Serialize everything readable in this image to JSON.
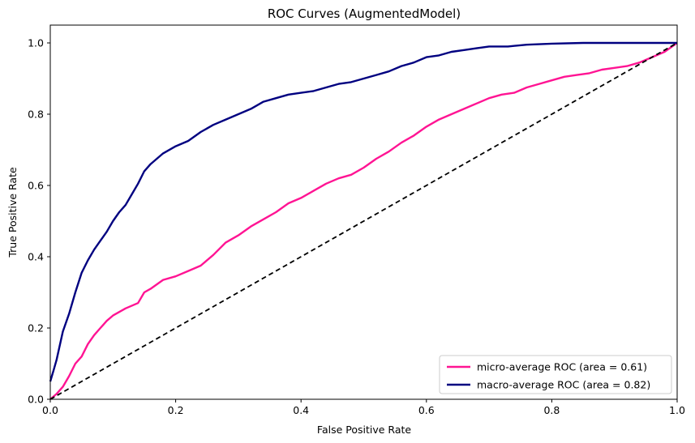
{
  "chart_data": {
    "type": "line",
    "title": "ROC Curves (AugmentedModel)",
    "xlabel": "False Positive Rate",
    "ylabel": "True Positive Rate",
    "xlim": [
      0.0,
      1.0
    ],
    "ylim": [
      0.0,
      1.05
    ],
    "xticks": [
      "0.0",
      "0.2",
      "0.4",
      "0.6",
      "0.8",
      "1.0"
    ],
    "yticks": [
      "0.0",
      "0.2",
      "0.4",
      "0.6",
      "0.8",
      "1.0"
    ],
    "grid": false,
    "legend_position": "lower right",
    "series": [
      {
        "name": "micro-average ROC (area = 0.61)",
        "color": "#ff1493",
        "x": [
          0.0,
          0.01,
          0.02,
          0.03,
          0.04,
          0.05,
          0.06,
          0.07,
          0.08,
          0.09,
          0.1,
          0.12,
          0.14,
          0.15,
          0.16,
          0.18,
          0.2,
          0.22,
          0.24,
          0.26,
          0.28,
          0.3,
          0.32,
          0.34,
          0.36,
          0.38,
          0.4,
          0.42,
          0.44,
          0.46,
          0.48,
          0.5,
          0.52,
          0.54,
          0.56,
          0.58,
          0.6,
          0.62,
          0.64,
          0.66,
          0.68,
          0.7,
          0.72,
          0.74,
          0.76,
          0.78,
          0.8,
          0.82,
          0.84,
          0.86,
          0.88,
          0.9,
          0.92,
          0.94,
          0.96,
          0.98,
          1.0
        ],
        "y": [
          0.0,
          0.015,
          0.035,
          0.065,
          0.1,
          0.12,
          0.155,
          0.18,
          0.2,
          0.22,
          0.235,
          0.255,
          0.27,
          0.3,
          0.31,
          0.335,
          0.345,
          0.36,
          0.375,
          0.405,
          0.44,
          0.46,
          0.485,
          0.505,
          0.525,
          0.55,
          0.565,
          0.585,
          0.605,
          0.62,
          0.63,
          0.65,
          0.675,
          0.695,
          0.72,
          0.74,
          0.765,
          0.785,
          0.8,
          0.815,
          0.83,
          0.845,
          0.855,
          0.86,
          0.875,
          0.885,
          0.895,
          0.905,
          0.91,
          0.915,
          0.925,
          0.93,
          0.935,
          0.945,
          0.96,
          0.975,
          1.0
        ]
      },
      {
        "name": "macro-average ROC (area = 0.82)",
        "color": "#000080",
        "x": [
          0.0,
          0.005,
          0.01,
          0.015,
          0.02,
          0.03,
          0.04,
          0.05,
          0.06,
          0.07,
          0.08,
          0.09,
          0.1,
          0.11,
          0.12,
          0.13,
          0.14,
          0.15,
          0.16,
          0.18,
          0.2,
          0.22,
          0.24,
          0.26,
          0.28,
          0.3,
          0.32,
          0.34,
          0.36,
          0.38,
          0.4,
          0.42,
          0.44,
          0.46,
          0.48,
          0.5,
          0.52,
          0.54,
          0.56,
          0.58,
          0.6,
          0.62,
          0.64,
          0.66,
          0.68,
          0.7,
          0.73,
          0.76,
          0.8,
          0.85,
          0.9,
          0.95,
          1.0
        ],
        "y": [
          0.05,
          0.08,
          0.11,
          0.15,
          0.19,
          0.24,
          0.3,
          0.355,
          0.39,
          0.42,
          0.445,
          0.47,
          0.5,
          0.525,
          0.545,
          0.575,
          0.605,
          0.64,
          0.66,
          0.69,
          0.71,
          0.725,
          0.75,
          0.77,
          0.785,
          0.8,
          0.815,
          0.835,
          0.845,
          0.855,
          0.86,
          0.865,
          0.875,
          0.885,
          0.89,
          0.9,
          0.91,
          0.92,
          0.935,
          0.945,
          0.96,
          0.965,
          0.975,
          0.98,
          0.985,
          0.99,
          0.99,
          0.995,
          0.998,
          1.0,
          1.0,
          1.0,
          1.0
        ]
      },
      {
        "name": "",
        "color": "#000000",
        "dashed": true,
        "x": [
          0.0,
          1.0
        ],
        "y": [
          0.0,
          1.0
        ]
      }
    ]
  }
}
